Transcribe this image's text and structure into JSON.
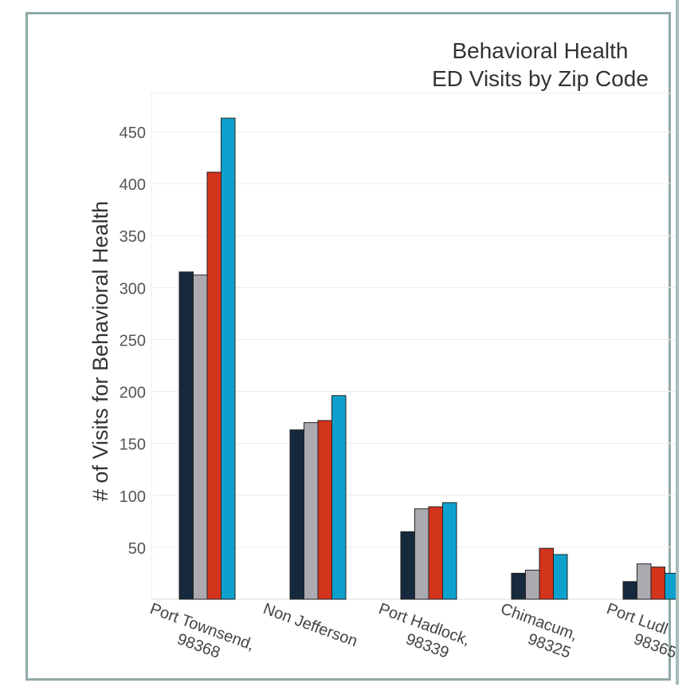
{
  "chart_data": {
    "type": "bar",
    "title_lines": [
      "Behavioral Health",
      "ED Visits by Zip Code"
    ],
    "xlabel": "",
    "ylabel": "# of Visits for Behavioral Health",
    "ylim": [
      0,
      480
    ],
    "yticks": [
      50,
      100,
      150,
      200,
      250,
      300,
      350,
      400,
      450
    ],
    "grid": true,
    "categories": [
      [
        "Port Townsend,",
        "98368"
      ],
      [
        "Non Jefferson"
      ],
      [
        "Port Hadlock,",
        "98339"
      ],
      [
        "Chimacum,",
        "98325"
      ],
      [
        "Port Ludl",
        "98365"
      ]
    ],
    "series": [
      {
        "color": "#16293d",
        "values": [
          315,
          163,
          65,
          25,
          17
        ]
      },
      {
        "color": "#abaab0",
        "values": [
          312,
          170,
          87,
          28,
          34
        ]
      },
      {
        "color": "#d3341c",
        "values": [
          411,
          172,
          89,
          49,
          31
        ]
      },
      {
        "color": "#0fa1cd",
        "values": [
          463,
          196,
          93,
          43,
          25
        ]
      }
    ]
  }
}
